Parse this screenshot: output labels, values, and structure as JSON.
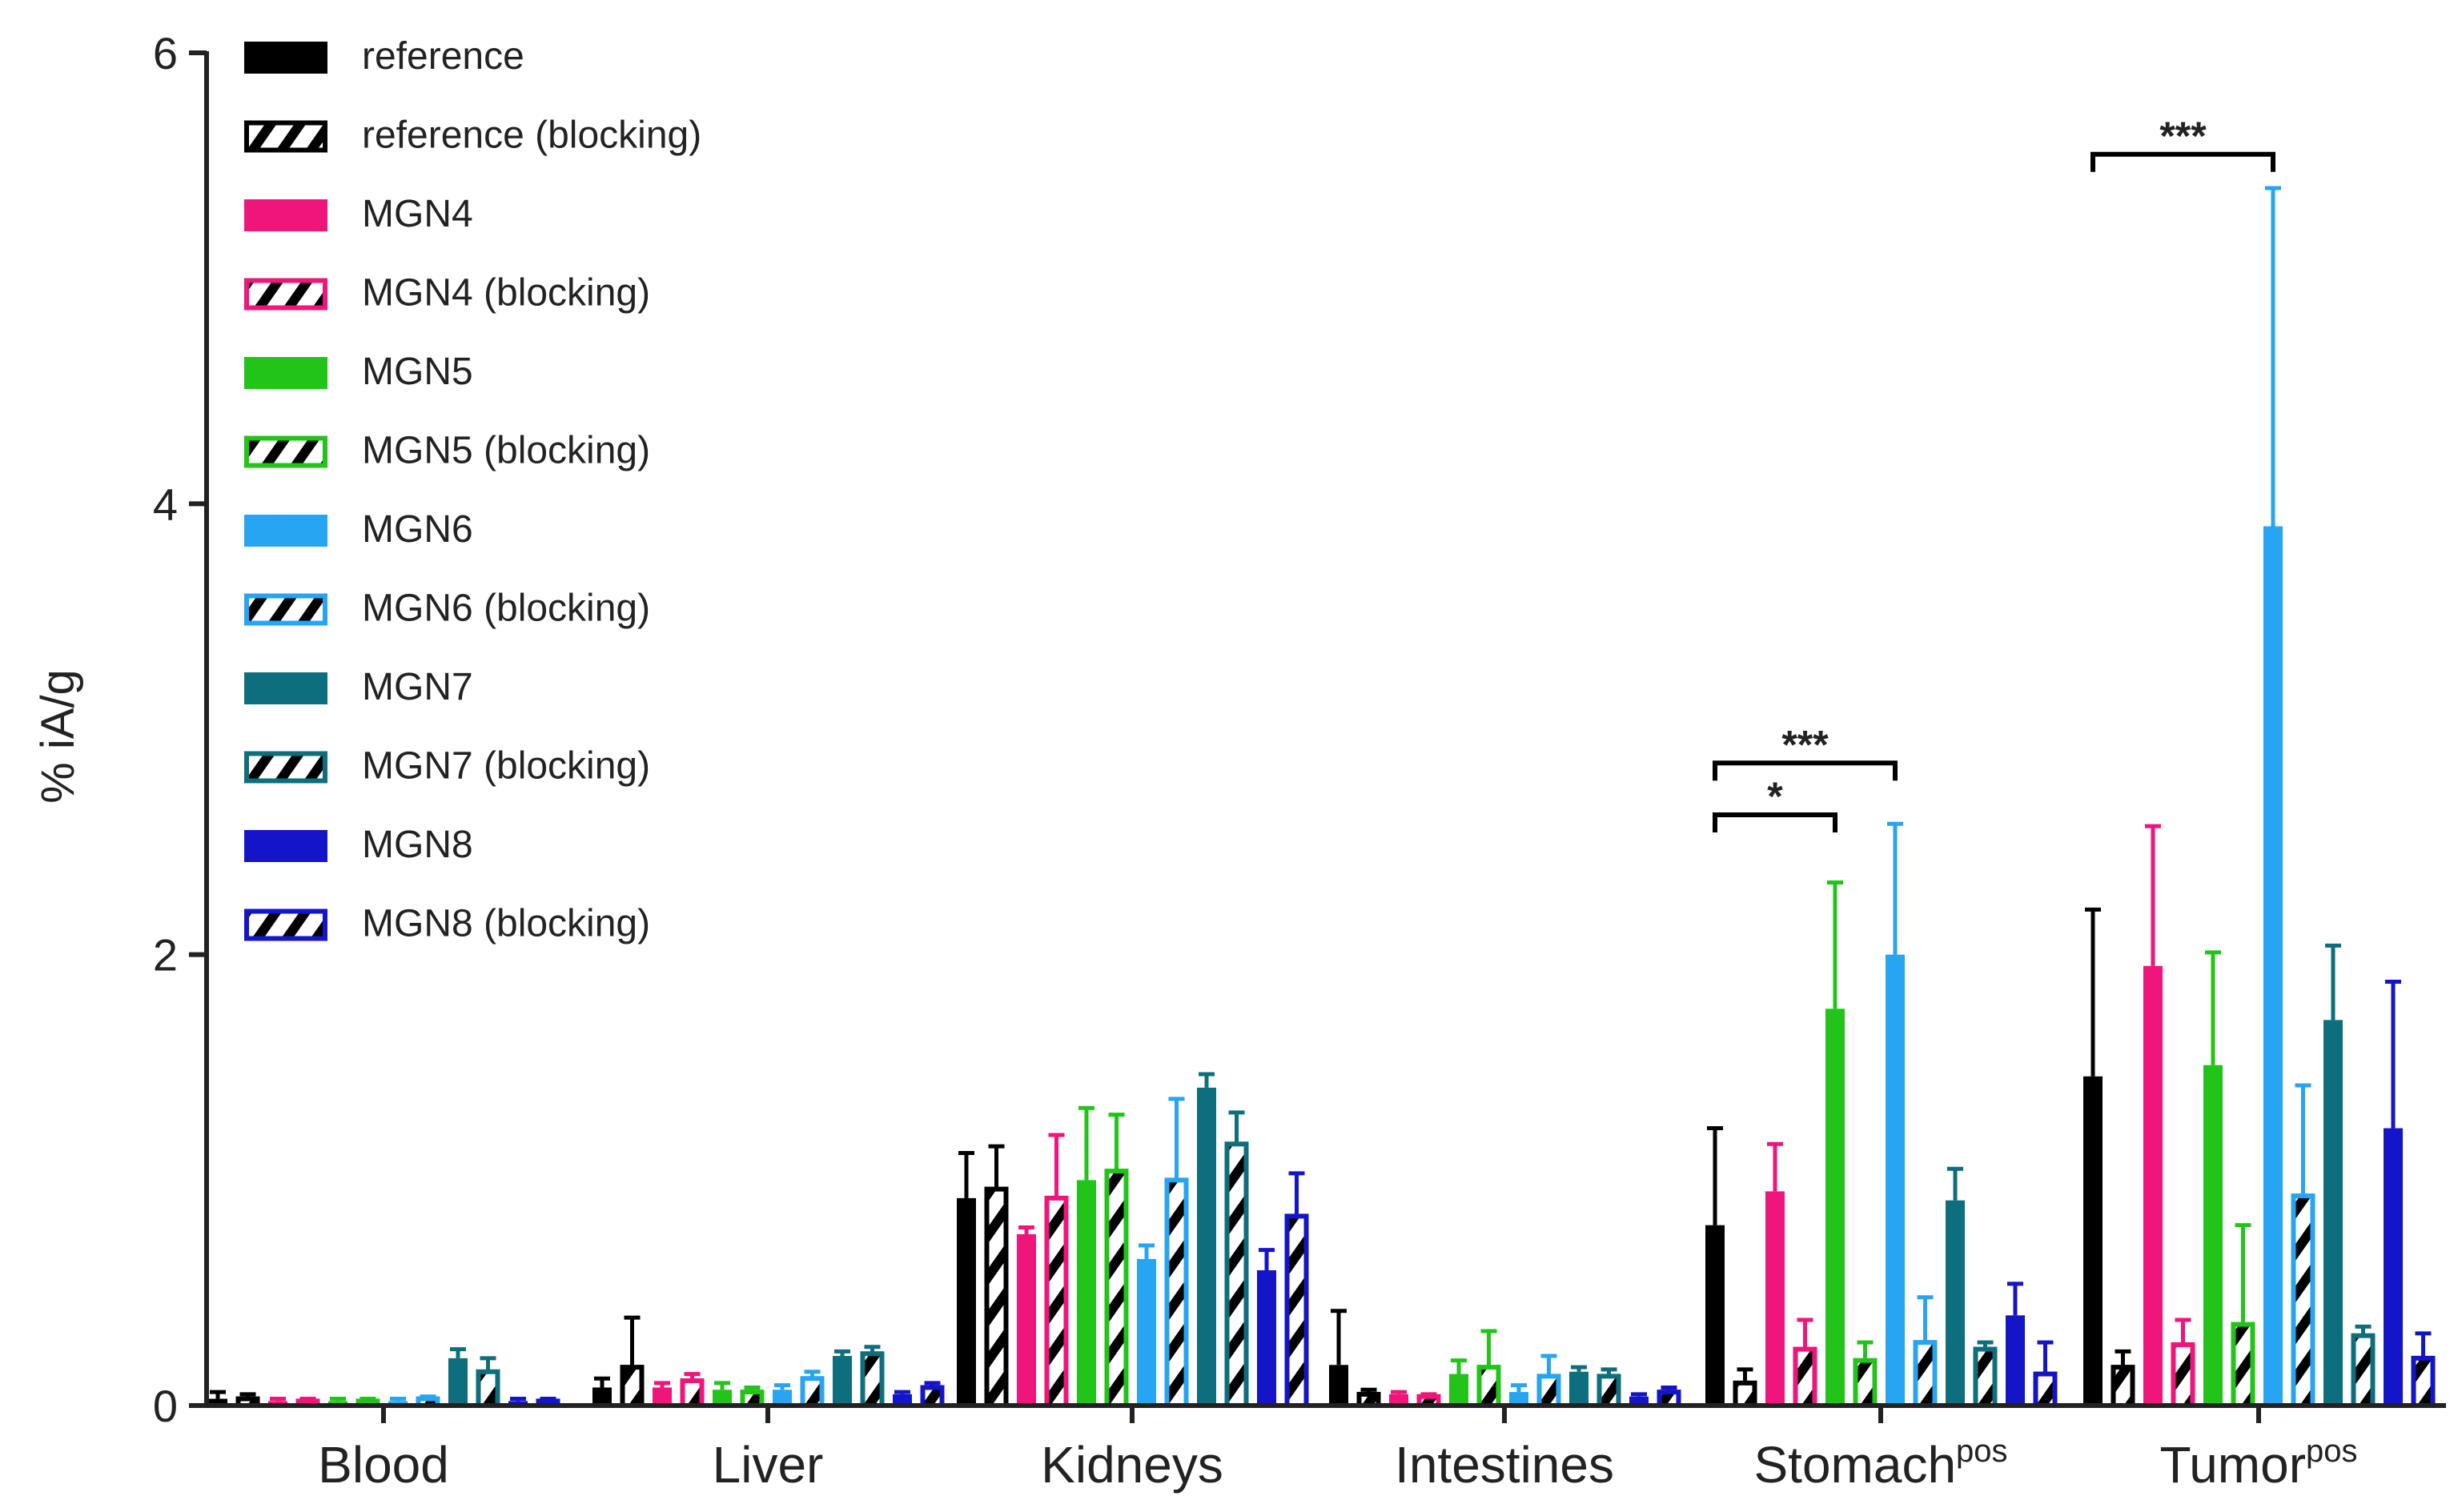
{
  "chart_data": {
    "type": "bar",
    "title": "",
    "xlabel": "",
    "ylabel": "% iA/g",
    "ylim": [
      0,
      6
    ],
    "yticks": [
      "0",
      "2",
      "4",
      "6"
    ],
    "categories": [
      {
        "name": "Blood",
        "sup": ""
      },
      {
        "name": "Liver",
        "sup": ""
      },
      {
        "name": "Kidneys",
        "sup": ""
      },
      {
        "name": "Intestines",
        "sup": ""
      },
      {
        "name": "Stomach",
        "sup": "pos"
      },
      {
        "name": "Tumor",
        "sup": "pos"
      }
    ],
    "series": [
      {
        "name": "reference",
        "color": "#000000",
        "hatched": false,
        "values": [
          0.03,
          0.08,
          0.92,
          0.18,
          0.8,
          1.46
        ],
        "errors": [
          0.03,
          0.04,
          0.2,
          0.24,
          0.43,
          0.74
        ]
      },
      {
        "name": "reference (blocking)",
        "color": "#000000",
        "hatched": true,
        "values": [
          0.03,
          0.17,
          0.96,
          0.05,
          0.1,
          0.17
        ],
        "errors": [
          0.02,
          0.22,
          0.19,
          0.02,
          0.06,
          0.07
        ]
      },
      {
        "name": "MGN4",
        "color": "#f0157a",
        "hatched": false,
        "values": [
          0.02,
          0.08,
          0.76,
          0.05,
          0.95,
          1.95
        ],
        "errors": [
          0.01,
          0.02,
          0.03,
          0.01,
          0.21,
          0.62
        ]
      },
      {
        "name": "MGN4 (blocking)",
        "color": "#f0157a",
        "hatched": true,
        "values": [
          0.02,
          0.11,
          0.92,
          0.04,
          0.25,
          0.27
        ],
        "errors": [
          0.01,
          0.03,
          0.28,
          0.01,
          0.13,
          0.11
        ]
      },
      {
        "name": "MGN5",
        "color": "#22c41a",
        "hatched": false,
        "values": [
          0.02,
          0.07,
          1.0,
          0.14,
          1.76,
          1.51
        ],
        "errors": [
          0.01,
          0.03,
          0.32,
          0.06,
          0.56,
          0.5
        ]
      },
      {
        "name": "MGN5 (blocking)",
        "color": "#22c41a",
        "hatched": true,
        "values": [
          0.02,
          0.06,
          1.04,
          0.17,
          0.2,
          0.36
        ],
        "errors": [
          0.01,
          0.02,
          0.25,
          0.16,
          0.08,
          0.44
        ]
      },
      {
        "name": "MGN6",
        "color": "#27a4f2",
        "hatched": false,
        "values": [
          0.02,
          0.07,
          0.65,
          0.06,
          2.0,
          3.9
        ],
        "errors": [
          0.01,
          0.02,
          0.06,
          0.03,
          0.58,
          1.5
        ]
      },
      {
        "name": "MGN6 (blocking)",
        "color": "#27a4f2",
        "hatched": true,
        "values": [
          0.03,
          0.12,
          1.0,
          0.13,
          0.28,
          0.93
        ],
        "errors": [
          0.01,
          0.03,
          0.36,
          0.09,
          0.2,
          0.49
        ]
      },
      {
        "name": "MGN7",
        "color": "#0d6e7e",
        "hatched": false,
        "values": [
          0.21,
          0.22,
          1.41,
          0.15,
          0.91,
          1.71
        ],
        "errors": [
          0.04,
          0.02,
          0.06,
          0.02,
          0.14,
          0.33
        ]
      },
      {
        "name": "MGN7 (blocking)",
        "color": "#0d6e7e",
        "hatched": true,
        "values": [
          0.15,
          0.23,
          1.16,
          0.13,
          0.25,
          0.31
        ],
        "errors": [
          0.06,
          0.03,
          0.14,
          0.03,
          0.03,
          0.04
        ]
      },
      {
        "name": "MGN8",
        "color": "#1414c8",
        "hatched": false,
        "values": [
          0.02,
          0.05,
          0.6,
          0.04,
          0.4,
          1.23
        ],
        "errors": [
          0.01,
          0.01,
          0.09,
          0.01,
          0.14,
          0.65
        ]
      },
      {
        "name": "MGN8 (blocking)",
        "color": "#1414c8",
        "hatched": true,
        "values": [
          0.02,
          0.08,
          0.84,
          0.06,
          0.14,
          0.21
        ],
        "errors": [
          0.01,
          0.02,
          0.19,
          0.02,
          0.14,
          0.11
        ]
      }
    ],
    "significance": [
      {
        "label": "*",
        "category": 4,
        "from_series": 0,
        "to_series": 4,
        "y": 2.62
      },
      {
        "label": "***",
        "category": 4,
        "from_series": 0,
        "to_series": 6,
        "y": 2.85
      },
      {
        "label": "***",
        "category": 5,
        "from_series": 0,
        "to_series": 6,
        "y": 5.55
      }
    ],
    "legend_position": "top-left"
  }
}
